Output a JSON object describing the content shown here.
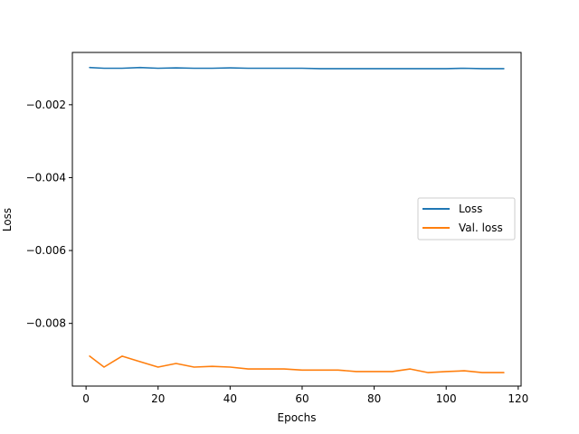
{
  "chart_data": {
    "type": "line",
    "title": "",
    "xlabel": "Epochs",
    "ylabel": "Loss",
    "xlim": [
      -3.8,
      120.8
    ],
    "ylim": [
      -0.00972,
      -0.000565
    ],
    "xticks": [
      0,
      20,
      40,
      60,
      80,
      100,
      120
    ],
    "yticks": [
      -0.002,
      -0.004,
      -0.006,
      -0.008
    ],
    "xtick_labels": [
      "0",
      "20",
      "40",
      "60",
      "80",
      "100",
      "120"
    ],
    "ytick_labels": [
      "−0.002",
      "−0.004",
      "−0.006",
      "−0.008"
    ],
    "grid": false,
    "legend_position": "center-right",
    "x": [
      1,
      5,
      10,
      15,
      20,
      25,
      30,
      35,
      40,
      45,
      50,
      55,
      60,
      65,
      70,
      75,
      80,
      85,
      90,
      95,
      100,
      105,
      110,
      116
    ],
    "series": [
      {
        "name": "Loss",
        "color": "#1f77b4",
        "values": [
          -0.00098,
          -0.001,
          -0.001,
          -0.00098,
          -0.001,
          -0.00099,
          -0.001,
          -0.001,
          -0.00099,
          -0.001,
          -0.001,
          -0.001,
          -0.001,
          -0.00101,
          -0.00101,
          -0.00101,
          -0.00101,
          -0.00101,
          -0.00101,
          -0.00101,
          -0.00101,
          -0.001,
          -0.00101,
          -0.00101
        ]
      },
      {
        "name": "Val. loss",
        "color": "#ff7f0e",
        "values": [
          -0.0089,
          -0.0092,
          -0.0089,
          -0.00905,
          -0.0092,
          -0.0091,
          -0.0092,
          -0.00918,
          -0.0092,
          -0.00925,
          -0.00925,
          -0.00925,
          -0.00928,
          -0.00928,
          -0.00928,
          -0.00932,
          -0.00932,
          -0.00932,
          -0.00925,
          -0.00935,
          -0.00932,
          -0.0093,
          -0.00935,
          -0.00935
        ]
      }
    ]
  }
}
